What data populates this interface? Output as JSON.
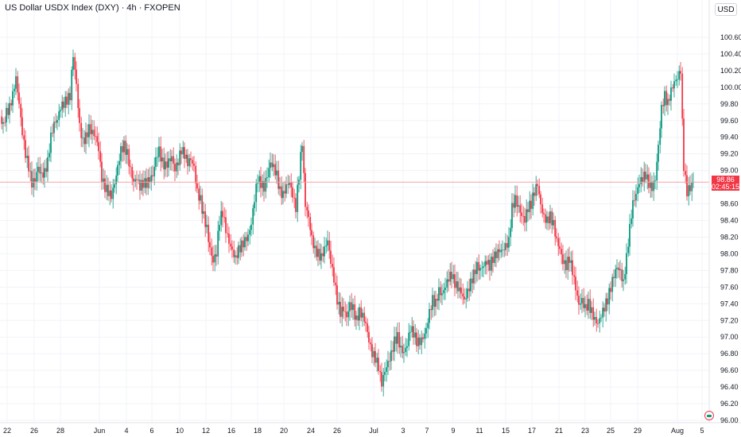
{
  "header": {
    "title": "US Dollar USDX Index (DXY) · 4h · FXOPEN",
    "currency": "USD"
  },
  "price_label": {
    "price": "98.86",
    "countdown": "02:45:15"
  },
  "colors": {
    "up": "#089981",
    "down": "#f23645",
    "last_price_line": "#f7a1a8",
    "grid": "#f0f3fa"
  },
  "icons": {
    "logo": "flag-icon"
  },
  "chart_data": {
    "type": "candlestick",
    "title": "US Dollar USDX Index (DXY) · 4h · FXOPEN",
    "ylim": [
      96.0,
      100.8
    ],
    "y_ticks": [
      "100.60",
      "100.40",
      "100.20",
      "100.00",
      "99.80",
      "99.60",
      "99.40",
      "99.20",
      "99.00",
      "98.80",
      "98.60",
      "98.40",
      "98.20",
      "98.00",
      "97.80",
      "97.60",
      "97.40",
      "97.20",
      "97.00",
      "96.80",
      "96.60",
      "96.40",
      "96.20",
      "96.00"
    ],
    "x_ticks": [
      "22",
      "26",
      "28",
      "Jun",
      "4",
      "6",
      "10",
      "12",
      "16",
      "18",
      "20",
      "24",
      "26",
      "Jul",
      "3",
      "7",
      "9",
      "11",
      "15",
      "17",
      "21",
      "23",
      "25",
      "29",
      "Aug",
      "5"
    ],
    "close_path": [
      [
        0,
        99.65
      ],
      [
        4,
        99.55
      ],
      [
        8,
        99.7
      ],
      [
        12,
        99.75
      ],
      [
        16,
        99.9
      ],
      [
        20,
        100.1
      ],
      [
        24,
        99.8
      ],
      [
        28,
        99.45
      ],
      [
        32,
        99.2
      ],
      [
        36,
        99.05
      ],
      [
        40,
        98.85
      ],
      [
        44,
        98.9
      ],
      [
        48,
        99.05
      ],
      [
        52,
        98.95
      ],
      [
        56,
        98.98
      ],
      [
        60,
        99.1
      ],
      [
        64,
        99.4
      ],
      [
        68,
        99.55
      ],
      [
        72,
        99.6
      ],
      [
        76,
        99.75
      ],
      [
        80,
        99.8
      ],
      [
        84,
        99.85
      ],
      [
        88,
        99.9
      ],
      [
        92,
        100.4
      ],
      [
        96,
        100.05
      ],
      [
        100,
        99.55
      ],
      [
        104,
        99.35
      ],
      [
        108,
        99.4
      ],
      [
        112,
        99.5
      ],
      [
        116,
        99.45
      ],
      [
        120,
        99.4
      ],
      [
        124,
        99.25
      ],
      [
        128,
        98.9
      ],
      [
        132,
        98.8
      ],
      [
        136,
        98.75
      ],
      [
        140,
        98.7
      ],
      [
        144,
        98.85
      ],
      [
        148,
        99.05
      ],
      [
        152,
        99.25
      ],
      [
        156,
        99.3
      ],
      [
        160,
        99.2
      ],
      [
        164,
        99.0
      ],
      [
        168,
        98.85
      ],
      [
        172,
        98.9
      ],
      [
        176,
        98.8
      ],
      [
        180,
        98.85
      ],
      [
        184,
        98.85
      ],
      [
        188,
        98.9
      ],
      [
        192,
        98.95
      ],
      [
        196,
        99.15
      ],
      [
        200,
        99.25
      ],
      [
        204,
        99.1
      ],
      [
        208,
        99.05
      ],
      [
        212,
        99.1
      ],
      [
        216,
        99.15
      ],
      [
        220,
        99.0
      ],
      [
        224,
        99.1
      ],
      [
        228,
        99.25
      ],
      [
        232,
        99.2
      ],
      [
        236,
        99.1
      ],
      [
        240,
        99.15
      ],
      [
        244,
        99.05
      ],
      [
        248,
        98.75
      ],
      [
        252,
        98.65
      ],
      [
        256,
        98.45
      ],
      [
        260,
        98.3
      ],
      [
        264,
        98.05
      ],
      [
        268,
        97.9
      ],
      [
        272,
        98.0
      ],
      [
        276,
        98.4
      ],
      [
        280,
        98.5
      ],
      [
        284,
        98.3
      ],
      [
        288,
        98.15
      ],
      [
        292,
        98.05
      ],
      [
        296,
        97.95
      ],
      [
        300,
        98.05
      ],
      [
        304,
        98.1
      ],
      [
        308,
        98.15
      ],
      [
        312,
        98.2
      ],
      [
        316,
        98.35
      ],
      [
        320,
        98.65
      ],
      [
        324,
        98.9
      ],
      [
        328,
        98.85
      ],
      [
        332,
        98.8
      ],
      [
        336,
        98.95
      ],
      [
        340,
        99.1
      ],
      [
        344,
        99.05
      ],
      [
        348,
        98.95
      ],
      [
        352,
        98.75
      ],
      [
        356,
        98.7
      ],
      [
        360,
        98.8
      ],
      [
        364,
        98.85
      ],
      [
        368,
        98.7
      ],
      [
        372,
        98.55
      ],
      [
        376,
        98.95
      ],
      [
        380,
        99.35
      ],
      [
        384,
        98.6
      ],
      [
        388,
        98.45
      ],
      [
        392,
        98.2
      ],
      [
        396,
        98.05
      ],
      [
        400,
        98.0
      ],
      [
        404,
        97.95
      ],
      [
        408,
        98.05
      ],
      [
        412,
        98.15
      ],
      [
        416,
        97.9
      ],
      [
        420,
        97.7
      ],
      [
        424,
        97.45
      ],
      [
        428,
        97.3
      ],
      [
        432,
        97.35
      ],
      [
        436,
        97.25
      ],
      [
        440,
        97.4
      ],
      [
        444,
        97.35
      ],
      [
        448,
        97.2
      ],
      [
        452,
        97.3
      ],
      [
        456,
        97.25
      ],
      [
        460,
        97.15
      ],
      [
        464,
        96.95
      ],
      [
        468,
        96.8
      ],
      [
        472,
        96.75
      ],
      [
        476,
        96.65
      ],
      [
        480,
        96.45
      ],
      [
        484,
        96.6
      ],
      [
        488,
        96.7
      ],
      [
        492,
        96.8
      ],
      [
        496,
        96.95
      ],
      [
        500,
        97.0
      ],
      [
        504,
        96.85
      ],
      [
        508,
        96.8
      ],
      [
        512,
        96.9
      ],
      [
        516,
        97.1
      ],
      [
        520,
        97.05
      ],
      [
        524,
        96.95
      ],
      [
        528,
        96.95
      ],
      [
        532,
        97.0
      ],
      [
        536,
        97.1
      ],
      [
        540,
        97.3
      ],
      [
        544,
        97.45
      ],
      [
        548,
        97.4
      ],
      [
        552,
        97.55
      ],
      [
        556,
        97.5
      ],
      [
        560,
        97.6
      ],
      [
        564,
        97.7
      ],
      [
        568,
        97.75
      ],
      [
        572,
        97.65
      ],
      [
        576,
        97.6
      ],
      [
        580,
        97.55
      ],
      [
        584,
        97.45
      ],
      [
        588,
        97.55
      ],
      [
        592,
        97.65
      ],
      [
        596,
        97.75
      ],
      [
        600,
        97.85
      ],
      [
        604,
        97.8
      ],
      [
        608,
        97.85
      ],
      [
        612,
        97.9
      ],
      [
        616,
        97.85
      ],
      [
        620,
        97.95
      ],
      [
        624,
        98.0
      ],
      [
        628,
        98.05
      ],
      [
        632,
        98.05
      ],
      [
        636,
        98.1
      ],
      [
        640,
        98.15
      ],
      [
        644,
        98.55
      ],
      [
        648,
        98.65
      ],
      [
        652,
        98.55
      ],
      [
        656,
        98.45
      ],
      [
        660,
        98.4
      ],
      [
        664,
        98.55
      ],
      [
        668,
        98.6
      ],
      [
        672,
        98.75
      ],
      [
        676,
        98.85
      ],
      [
        680,
        98.6
      ],
      [
        684,
        98.45
      ],
      [
        688,
        98.4
      ],
      [
        692,
        98.45
      ],
      [
        696,
        98.35
      ],
      [
        700,
        98.15
      ],
      [
        704,
        98.05
      ],
      [
        708,
        97.9
      ],
      [
        712,
        97.85
      ],
      [
        716,
        97.95
      ],
      [
        720,
        97.8
      ],
      [
        724,
        97.6
      ],
      [
        728,
        97.4
      ],
      [
        732,
        97.45
      ],
      [
        736,
        97.35
      ],
      [
        740,
        97.4
      ],
      [
        744,
        97.3
      ],
      [
        748,
        97.2
      ],
      [
        752,
        97.15
      ],
      [
        756,
        97.25
      ],
      [
        760,
        97.35
      ],
      [
        764,
        97.45
      ],
      [
        768,
        97.6
      ],
      [
        772,
        97.75
      ],
      [
        776,
        97.85
      ],
      [
        780,
        97.8
      ],
      [
        784,
        97.65
      ],
      [
        788,
        97.95
      ],
      [
        792,
        98.3
      ],
      [
        796,
        98.6
      ],
      [
        800,
        98.7
      ],
      [
        804,
        98.85
      ],
      [
        808,
        98.9
      ],
      [
        812,
        98.95
      ],
      [
        816,
        98.85
      ],
      [
        820,
        98.8
      ],
      [
        824,
        98.9
      ],
      [
        828,
        99.3
      ],
      [
        832,
        99.75
      ],
      [
        836,
        99.9
      ],
      [
        840,
        99.8
      ],
      [
        844,
        99.95
      ],
      [
        848,
        100.05
      ],
      [
        852,
        100.1
      ],
      [
        856,
        100.2
      ],
      [
        860,
        99.05
      ],
      [
        864,
        98.75
      ],
      [
        868,
        98.8
      ],
      [
        872,
        98.86
      ]
    ]
  }
}
